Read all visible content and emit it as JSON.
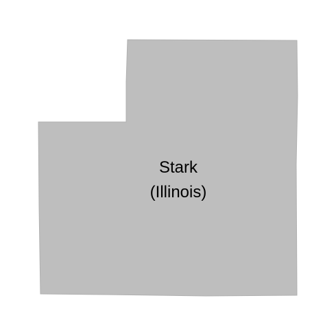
{
  "map": {
    "region_name": "Stark",
    "state_label": "(Illinois)",
    "fill_color": "#bebebe",
    "background_color": "#ffffff",
    "label_color": "#000000"
  }
}
